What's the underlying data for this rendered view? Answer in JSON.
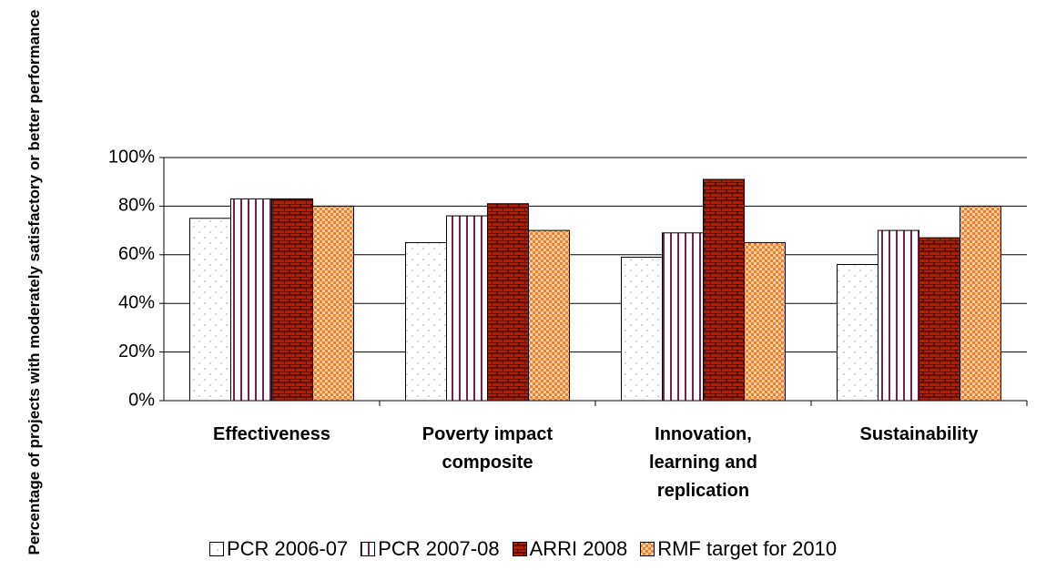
{
  "chart_data": {
    "type": "bar",
    "y_label": "Percentage of projects with moderately satisfactory or better performance",
    "categories": [
      "Effectiveness",
      "Poverty impact composite",
      "Innovation, learning and replication",
      "Sustainability"
    ],
    "series": [
      {
        "name": "PCR 2006-07",
        "color": "#9999dd",
        "pattern": "dots",
        "values": [
          75,
          65,
          59,
          56
        ]
      },
      {
        "name": "PCR 2007-08",
        "color": "#7a2050",
        "pattern": "vlines",
        "values": [
          83,
          76,
          69,
          70
        ]
      },
      {
        "name": "ARRI 2008",
        "color": "#b02000",
        "pattern": "brick",
        "values": [
          83,
          81,
          91,
          67
        ]
      },
      {
        "name": "RMF target for 2010",
        "color": "#f08030",
        "pattern": "check",
        "values": [
          80,
          70,
          65,
          80
        ]
      }
    ],
    "ylim": [
      0,
      100
    ],
    "yticks": [
      {
        "value": 0,
        "label": "0%"
      },
      {
        "value": 20,
        "label": "20%"
      },
      {
        "value": 40,
        "label": "40%"
      },
      {
        "value": 60,
        "label": "60%"
      },
      {
        "value": 80,
        "label": "80%"
      },
      {
        "value": 100,
        "label": "100%"
      }
    ],
    "grid": true,
    "legend": "bottom"
  }
}
